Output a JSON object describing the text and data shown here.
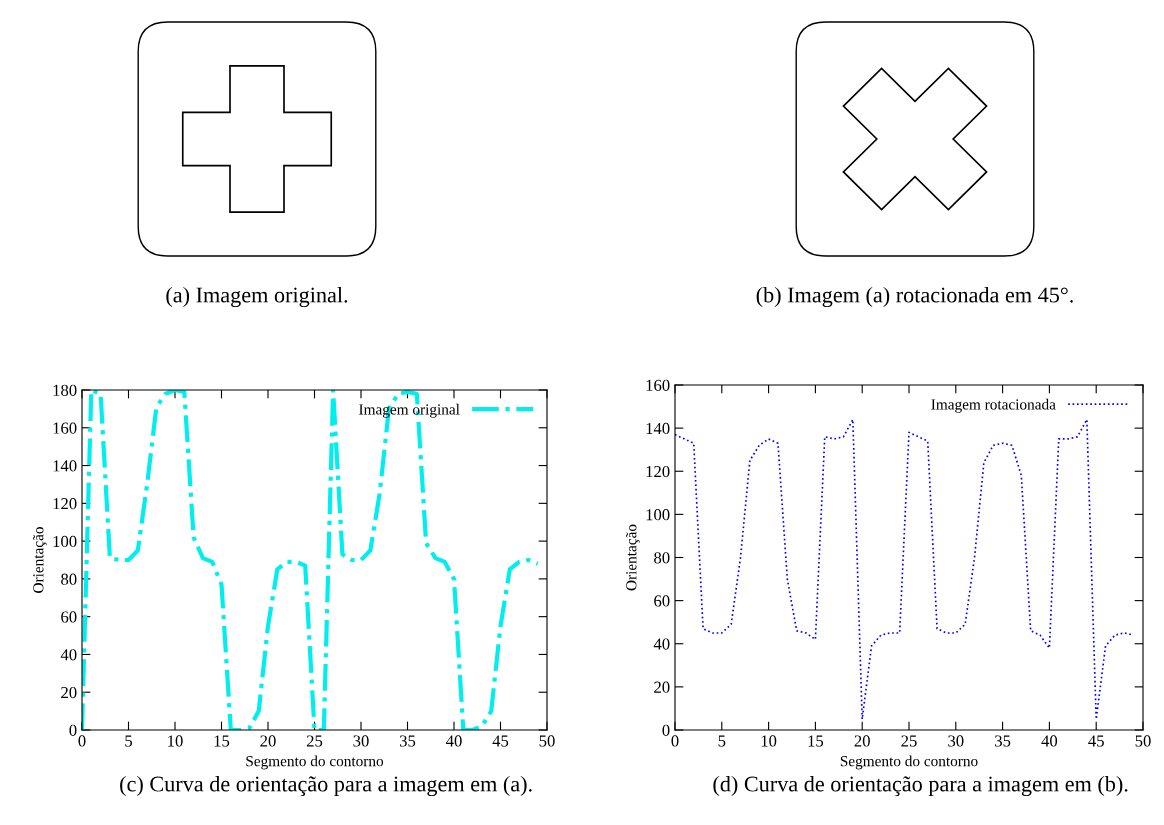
{
  "chart_data": [
    {
      "type": "other",
      "annotations": [
        "(a) Imagem original."
      ]
    },
    {
      "type": "other",
      "annotations": [
        "(b) Imagem (a) rotacionada em 45°."
      ]
    },
    {
      "type": "line",
      "xlabel": "Segmento do contorno",
      "ylabel": "Orientação",
      "annotations": [
        "(c) Curva de orientação para a imagem em (a)."
      ],
      "x": [
        0,
        1,
        2,
        3,
        4,
        5,
        6,
        7,
        8,
        9,
        10,
        11,
        12,
        13,
        14,
        15,
        16,
        17,
        18,
        19,
        20,
        21,
        22,
        23,
        24,
        25,
        26,
        27,
        28,
        29,
        30,
        31,
        32,
        33,
        34,
        35,
        36,
        37,
        38,
        39,
        40,
        41,
        42,
        43,
        44,
        45,
        46,
        47,
        48,
        49
      ],
      "series": [
        {
          "name": "Imagem original",
          "color": "#00eeee",
          "line_style": "dashdot",
          "values": [
            0,
            180,
            178,
            91,
            90,
            90,
            95,
            130,
            171,
            178,
            180,
            179,
            102,
            91,
            89,
            77,
            0,
            0,
            1,
            10,
            55,
            85,
            89,
            89,
            87,
            0,
            0,
            180,
            93,
            90,
            90,
            95,
            125,
            170,
            178,
            179,
            178,
            99,
            91,
            89,
            80,
            0,
            0,
            2,
            10,
            55,
            85,
            89,
            90,
            88
          ]
        }
      ],
      "xlim": [
        0,
        50
      ],
      "xticks": [
        0,
        5,
        10,
        15,
        20,
        25,
        30,
        35,
        40,
        45,
        50
      ],
      "ylim": [
        0,
        180
      ],
      "yticks": [
        0,
        20,
        40,
        60,
        80,
        100,
        120,
        140,
        160,
        180
      ],
      "legend": "top right",
      "grid": false,
      "marker": "none"
    },
    {
      "type": "line",
      "xlabel": "Segmento do contorno",
      "ylabel": "Orientação",
      "annotations": [
        "(d) Curva de orientação para a imagem em (b)."
      ],
      "x": [
        0,
        1,
        2,
        3,
        4,
        5,
        6,
        7,
        8,
        9,
        10,
        11,
        12,
        13,
        14,
        15,
        16,
        17,
        18,
        19,
        20,
        21,
        22,
        23,
        24,
        25,
        26,
        27,
        28,
        29,
        30,
        31,
        32,
        33,
        34,
        35,
        36,
        37,
        38,
        39,
        40,
        41,
        42,
        43,
        44,
        45,
        46,
        47,
        48,
        49
      ],
      "series": [
        {
          "name": "Imagem rotacionada",
          "color": "#0000ff",
          "line_style": "dotted",
          "values": [
            137,
            135,
            133,
            47,
            45,
            45,
            49,
            80,
            125,
            132,
            135,
            133,
            70,
            46,
            45,
            42,
            136,
            135,
            136,
            144,
            5,
            39,
            44,
            45,
            45,
            138,
            136,
            134,
            47,
            45,
            45,
            49,
            80,
            124,
            132,
            133,
            132,
            118,
            46,
            44,
            38,
            135,
            135,
            136,
            144,
            5,
            39,
            44,
            45,
            44
          ]
        }
      ],
      "xlim": [
        0,
        50
      ],
      "xticks": [
        0,
        5,
        10,
        15,
        20,
        25,
        30,
        35,
        40,
        45,
        50
      ],
      "ylim": [
        0,
        160
      ],
      "yticks": [
        0,
        20,
        40,
        60,
        80,
        100,
        120,
        140,
        160
      ],
      "legend": "top right",
      "grid": false,
      "marker": "none"
    }
  ]
}
